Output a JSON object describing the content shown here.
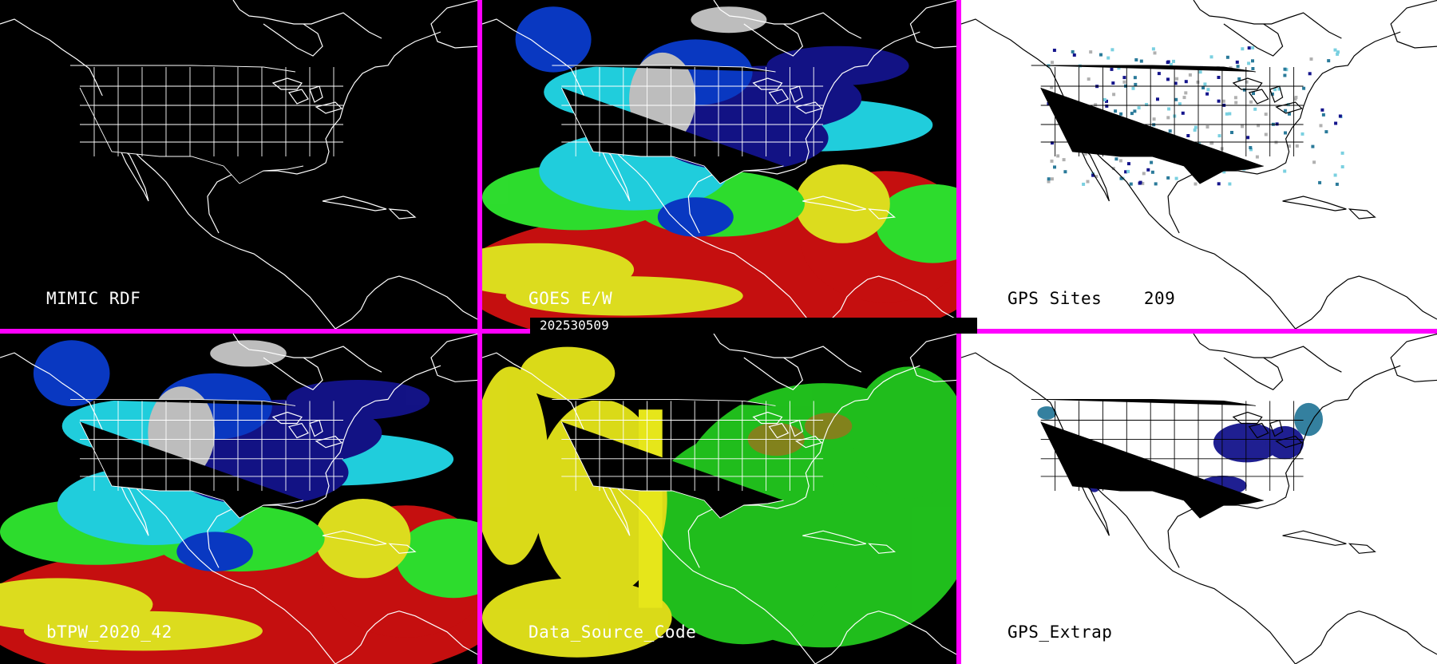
{
  "date": "202530509",
  "gps_site_count": "209",
  "panels": [
    {
      "id": "p1",
      "label": "MIMIC RDF",
      "theme": "dark",
      "fill": "none"
    },
    {
      "id": "p2",
      "label": "GOES E/W",
      "theme": "dark",
      "fill": "tpw"
    },
    {
      "id": "p3",
      "label": "GPS Sites",
      "theme": "light",
      "fill": "sites"
    },
    {
      "id": "p4",
      "label": "bTPW_2020_42",
      "theme": "dark",
      "fill": "tpw"
    },
    {
      "id": "p5",
      "label": "Data_Source_Code",
      "theme": "dark",
      "fill": "source"
    },
    {
      "id": "p6",
      "label": "GPS_Extrap",
      "theme": "light",
      "fill": "extrap"
    }
  ],
  "colors": {
    "frame": "#ff00ff",
    "dark_bg": "#000000",
    "light_bg": "#ffffff",
    "tpw_palette": [
      "#c8c8c8",
      "#14148c",
      "#0a3ccc",
      "#22d8e8",
      "#30e830",
      "#e8e820",
      "#d01010"
    ],
    "source_palette": [
      "#e6e61a",
      "#22c81e",
      "#8a8a1e"
    ],
    "gps_site_colors": [
      "#14148c",
      "#2a7a9a",
      "#7ad0e0",
      "#b0b0b0"
    ]
  }
}
